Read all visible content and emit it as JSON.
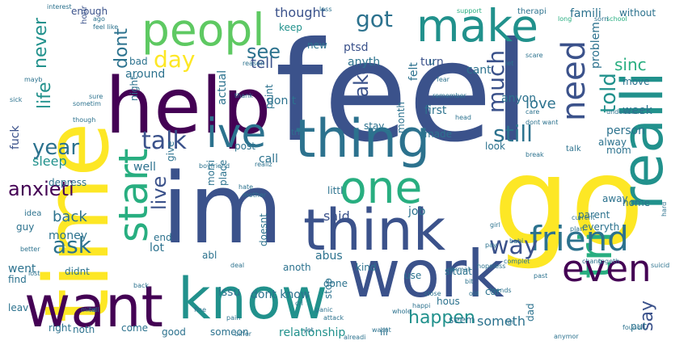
{
  "words": [
    "feel",
    "go",
    "im",
    "time",
    "help",
    "work",
    "want",
    "know",
    "think",
    "thing",
    "realli",
    "peopl",
    "make",
    "ive",
    "one",
    "start",
    "tri",
    "even",
    "friend",
    "need",
    "talk",
    "day",
    "got",
    "ask",
    "way",
    "anxieti",
    "year",
    "dont",
    "still",
    "much",
    "live",
    "life",
    "never",
    "say",
    "told",
    "happen",
    "love",
    "tell",
    "take",
    "sinc",
    "see",
    "thought",
    "fuck",
    "sleep",
    "back",
    "went",
    "said",
    "relationship",
    "dont know",
    "someth",
    "famili",
    "without",
    "enough",
    "anyth",
    "cant",
    "ptsd",
    "keep",
    "new",
    "turn",
    "u",
    "bad",
    "around",
    "don t",
    "hour",
    "mayb",
    "actual",
    "point",
    "person",
    "anyon",
    "first",
    "week",
    "alway",
    "night",
    "post",
    "call",
    "made",
    "stay",
    "look",
    "month",
    "mom",
    "well",
    "give",
    "place",
    "morri",
    "depress",
    "guy",
    "money",
    "littl",
    "job",
    "home",
    "end",
    "lot",
    "abl",
    "doesnt",
    "everyth",
    "parent",
    "away",
    "anoth",
    "abus",
    "issu",
    "kind",
    "situat",
    "done",
    "use",
    "car",
    "hous",
    "stop",
    "find",
    "didnt",
    "leav",
    "right",
    "noth",
    "come",
    "good",
    "someon",
    "ill",
    "seem",
    "dad",
    "put",
    "idea",
    "move",
    "problem",
    "therapi",
    "support",
    "school",
    "long",
    "interest",
    "understand",
    "care",
    "plan",
    "hard",
    "sick",
    "felt",
    "current",
    "girl",
    "normal",
    "complet",
    "hopeless",
    "found",
    "head",
    "past",
    "friends",
    "break",
    "tri",
    "boyfriend",
    "mother",
    "realiz",
    "fear",
    "though",
    "thank",
    "reason",
    "remember",
    "scare",
    "anymor",
    "mind",
    "lost",
    "deal",
    "far",
    "sometim",
    "sure",
    "yet",
    "talk",
    "differ",
    "alreadi",
    "chang",
    "togeth",
    "suicid",
    "sorri",
    "less",
    "let",
    "ago",
    "feel like",
    "dont want",
    "wasnt",
    "pay",
    "babi",
    "hate",
    "better",
    "tell",
    "back",
    "fine",
    "pain",
    "cri",
    "panic",
    "attack",
    "whole",
    "happi",
    "close",
    "bit",
    "old"
  ]
}
